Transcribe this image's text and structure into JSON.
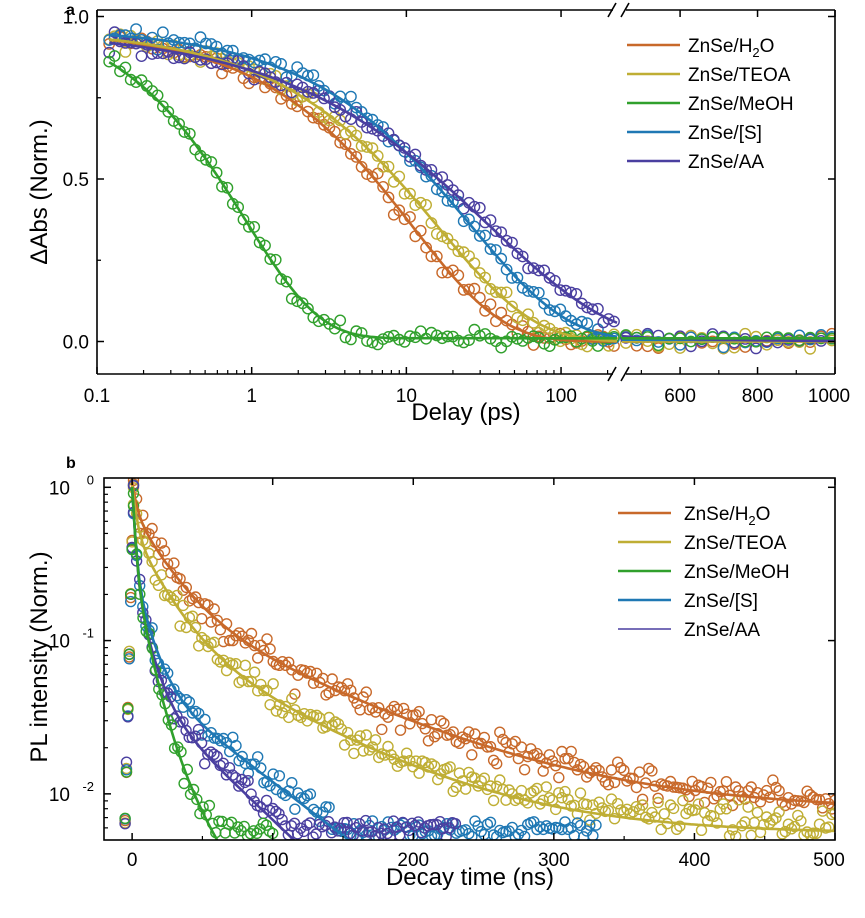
{
  "chart_data": [
    {
      "panel": "a",
      "type": "scatter",
      "xlabel": "Delay (ps)",
      "ylabel": "ΔAbs (Norm.)",
      "x_scale": "broken: log 0.1–230 then linear 450–1000",
      "ylim": [
        -0.1,
        1.02
      ],
      "xticks_log": [
        0.1,
        1,
        10,
        100
      ],
      "xtick_labels_log": [
        "0.1",
        "1",
        "10",
        "100"
      ],
      "xticks_lin": [
        600,
        800,
        1000
      ],
      "xtick_labels_lin": [
        "600",
        "800",
        "1000"
      ],
      "yticks": [
        0.0,
        0.5,
        1.0
      ],
      "ytick_labels": [
        "0.0",
        "0.5",
        "1.0"
      ],
      "legend_position": "top-right",
      "series": [
        {
          "name": "ZnSe/H₂O",
          "legend_base": "ZnSe/H",
          "legend_sub": "2",
          "legend_tail": "O",
          "color": "#c8692a",
          "fit": {
            "model": "decay",
            "A": 0.96,
            "tau": 11.0,
            "beta": 0.75,
            "c": 0.0
          }
        },
        {
          "name": "ZnSe/TEOA",
          "legend_base": "ZnSe/TEOA",
          "legend_sub": "",
          "legend_tail": "",
          "color": "#bfae34",
          "fit": {
            "model": "decay",
            "A": 0.96,
            "tau": 16.0,
            "beta": 0.7,
            "c": 0.0
          }
        },
        {
          "name": "ZnSe/MeOH",
          "legend_base": "ZnSe/MeOH",
          "legend_sub": "",
          "legend_tail": "",
          "color": "#30a02c",
          "fit": {
            "model": "decay",
            "A": 1.0,
            "tau": 0.9,
            "beta": 0.9,
            "c": 0.01
          }
        },
        {
          "name": "ZnSe/[S]",
          "legend_base": "ZnSe/[S]",
          "legend_sub": "",
          "legend_tail": "",
          "color": "#1f78b4",
          "fit": {
            "model": "decay",
            "A": 0.96,
            "tau": 26.0,
            "beta": 0.7,
            "c": 0.005
          }
        },
        {
          "name": "ZnSe/AA",
          "legend_base": "ZnSe/AA",
          "legend_sub": "",
          "legend_tail": "",
          "color": "#4a3fa0",
          "fit": {
            "model": "decay",
            "A": 0.96,
            "tau": 35.0,
            "beta": 0.55,
            "c": 0.0
          }
        }
      ]
    },
    {
      "panel": "b",
      "type": "scatter",
      "xlabel": "Decay time (ns)",
      "ylabel": "PL intensity (Norm.)",
      "xlim": [
        -20,
        500
      ],
      "ylim_log": [
        0.005,
        1.15
      ],
      "xticks": [
        0,
        100,
        200,
        300,
        400,
        500
      ],
      "xtick_labels": [
        "0",
        "100",
        "200",
        "300",
        "400",
        "500"
      ],
      "yticks": [
        0.01,
        0.1,
        1
      ],
      "ytick_labels": [
        {
          "base": "10",
          "exp": "-2"
        },
        {
          "base": "10",
          "exp": "-1"
        },
        {
          "base": "10",
          "exp": "0"
        }
      ],
      "legend_position": "top-right",
      "series": [
        {
          "name": "ZnSe/H₂O",
          "legend_base": "ZnSe/H",
          "legend_sub": "2",
          "legend_tail": "O",
          "color": "#c8692a",
          "fit": {
            "a1": 0.38,
            "t1": 3,
            "a2": 0.52,
            "t2": 22,
            "a3": 0.18,
            "t3": 95,
            "c": 0.0078
          }
        },
        {
          "name": "ZnSe/TEOA",
          "legend_base": "ZnSe/TEOA",
          "legend_sub": "",
          "legend_tail": "",
          "color": "#bfae34",
          "fit": {
            "a1": 0.5,
            "t1": 3,
            "a2": 0.4,
            "t2": 20,
            "a3": 0.12,
            "t3": 80,
            "c": 0.0055
          }
        },
        {
          "name": "ZnSe/MeOH",
          "legend_base": "ZnSe/MeOH",
          "legend_sub": "",
          "legend_tail": "",
          "color": "#30a02c",
          "fit": {
            "a1": 0.7,
            "t1": 2,
            "a2": 0.27,
            "t2": 9,
            "a3": 0.035,
            "t3": 30,
            "c": 0.0
          }
        },
        {
          "name": "ZnSe/[S]",
          "legend_base": "ZnSe/[S]",
          "legend_sub": "",
          "legend_tail": "",
          "color": "#1f78b4",
          "fit": {
            "a1": 0.7,
            "t1": 2,
            "a2": 0.24,
            "t2": 10,
            "a3": 0.06,
            "t3": 62,
            "c": 0.0
          }
        },
        {
          "name": "ZnSe/AA",
          "legend_base": "ZnSe/AA",
          "legend_sub": "",
          "legend_tail": "",
          "color": "#4a3fa0",
          "fit": {
            "a1": 0.72,
            "t1": 2,
            "a2": 0.23,
            "t2": 9,
            "a3": 0.05,
            "t3": 50,
            "c": 0.0
          }
        }
      ]
    }
  ]
}
